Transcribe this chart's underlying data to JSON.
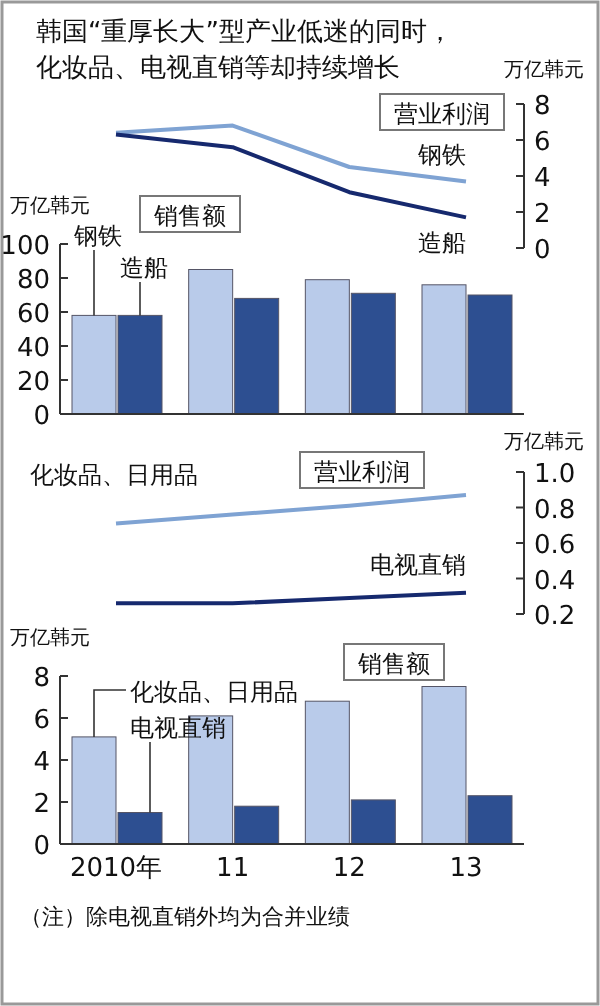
{
  "chart_data": [
    {
      "type": "line",
      "title": "营业利润",
      "ylabel": "万亿韩元",
      "categories": [
        null,
        null,
        null,
        null
      ],
      "ylim": [
        0,
        8
      ],
      "yticks": [
        0,
        2,
        4,
        6,
        8
      ],
      "tick_labels": "y",
      "annotations": [
        "韩国“重厚长大”型产业低迷的同时，",
        "化妆品、电视直销等却持续增长"
      ],
      "series": [
        {
          "name": "钢铁",
          "color": "#7fa3d3",
          "values": [
            6.4,
            6.8,
            4.5,
            3.7
          ]
        },
        {
          "name": "造船",
          "color": "#16296e",
          "values": [
            6.3,
            5.6,
            3.1,
            1.7
          ]
        }
      ]
    },
    {
      "type": "bar",
      "title": "销售额",
      "ylabel": "万亿韩元",
      "categories": [
        null,
        null,
        null,
        null
      ],
      "ylim": [
        0,
        100
      ],
      "yticks": [
        0,
        20,
        40,
        60,
        80,
        100
      ],
      "tick_labels": "y",
      "series": [
        {
          "name": "钢铁",
          "color": "#b9cbea",
          "values": [
            58,
            85,
            79,
            76
          ]
        },
        {
          "name": "造船",
          "color": "#2d4f91",
          "values": [
            58,
            68,
            71,
            70
          ]
        }
      ]
    },
    {
      "type": "line",
      "title": "营业利润",
      "ylabel": "万亿韩元",
      "categories": [
        null,
        null,
        null,
        null
      ],
      "ylim": [
        0.2,
        1.0
      ],
      "yticks": [
        0.2,
        0.4,
        0.6,
        0.8,
        {
          "value": 1.0,
          "label": "1.0"
        }
      ],
      "tick_labels": "y",
      "series": [
        {
          "name": "化妆品、日用品",
          "color": "#7fa3d3",
          "values": [
            0.71,
            0.76,
            0.81,
            0.87
          ]
        },
        {
          "name": "电视直销",
          "color": "#16296e",
          "values": [
            0.26,
            0.26,
            0.29,
            0.32
          ]
        }
      ]
    },
    {
      "type": "bar",
      "title": "销售额",
      "ylabel": "万亿韩元",
      "categories": [
        "2010年",
        "11",
        "12",
        "13"
      ],
      "ylim": [
        0,
        8
      ],
      "yticks": [
        0,
        2,
        4,
        6,
        8
      ],
      "annotations": [
        "（注）除电视直销外均为合并业绩"
      ],
      "series": [
        {
          "name": "化妆品、日用品",
          "color": "#b9cbea",
          "values": [
            5.1,
            6.1,
            6.8,
            7.5
          ]
        },
        {
          "name": "电视直销",
          "color": "#2d4f91",
          "values": [
            1.5,
            1.8,
            2.1,
            2.3
          ]
        }
      ]
    }
  ]
}
